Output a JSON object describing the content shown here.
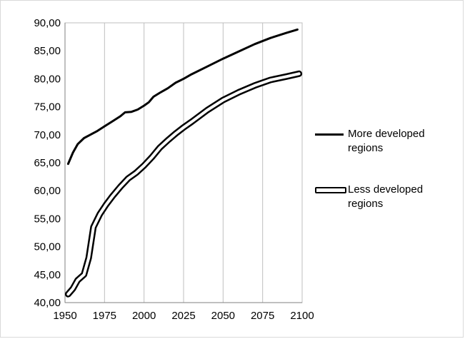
{
  "chart_data": {
    "type": "line",
    "title": "",
    "xlabel": "",
    "ylabel": "",
    "xlim": [
      1950,
      2100
    ],
    "ylim": [
      40,
      90
    ],
    "x_ticks": [
      "1950",
      "1975",
      "2000",
      "2025",
      "2050",
      "2075",
      "2100"
    ],
    "y_ticks": [
      "40,00",
      "45,00",
      "50,00",
      "55,00",
      "60,00",
      "65,00",
      "70,00",
      "75,00",
      "80,00",
      "85,00",
      "90,00"
    ],
    "grid": "vertical",
    "legend_position": "right",
    "series": [
      {
        "name": "More developed regions",
        "style": "solid",
        "color": "#000000",
        "x": [
          1952,
          1955,
          1958,
          1962,
          1966,
          1970,
          1975,
          1980,
          1985,
          1988,
          1992,
          1996,
          2000,
          2003,
          2006,
          2010,
          2015,
          2020,
          2025,
          2030,
          2040,
          2050,
          2060,
          2070,
          2080,
          2090,
          2097
        ],
        "y": [
          64.8,
          66.8,
          68.3,
          69.4,
          70.0,
          70.6,
          71.5,
          72.4,
          73.3,
          74.0,
          74.1,
          74.5,
          75.2,
          75.8,
          76.8,
          77.5,
          78.3,
          79.3,
          80.0,
          80.8,
          82.2,
          83.6,
          84.9,
          86.2,
          87.3,
          88.2,
          88.8
        ]
      },
      {
        "name": "Less developed regions",
        "style": "outlined",
        "color": "#000000",
        "x": [
          1952,
          1955,
          1958,
          1962,
          1965,
          1968,
          1972,
          1976,
          1980,
          1985,
          1990,
          1995,
          2000,
          2005,
          2010,
          2015,
          2020,
          2025,
          2030,
          2040,
          2050,
          2060,
          2070,
          2080,
          2090,
          2098
        ],
        "y": [
          41.5,
          42.5,
          44.0,
          45.0,
          48.0,
          53.5,
          55.8,
          57.5,
          59.0,
          60.7,
          62.2,
          63.2,
          64.5,
          66.0,
          67.7,
          69.0,
          70.2,
          71.3,
          72.3,
          74.4,
          76.2,
          77.6,
          78.8,
          79.8,
          80.4,
          80.9
        ]
      }
    ]
  }
}
